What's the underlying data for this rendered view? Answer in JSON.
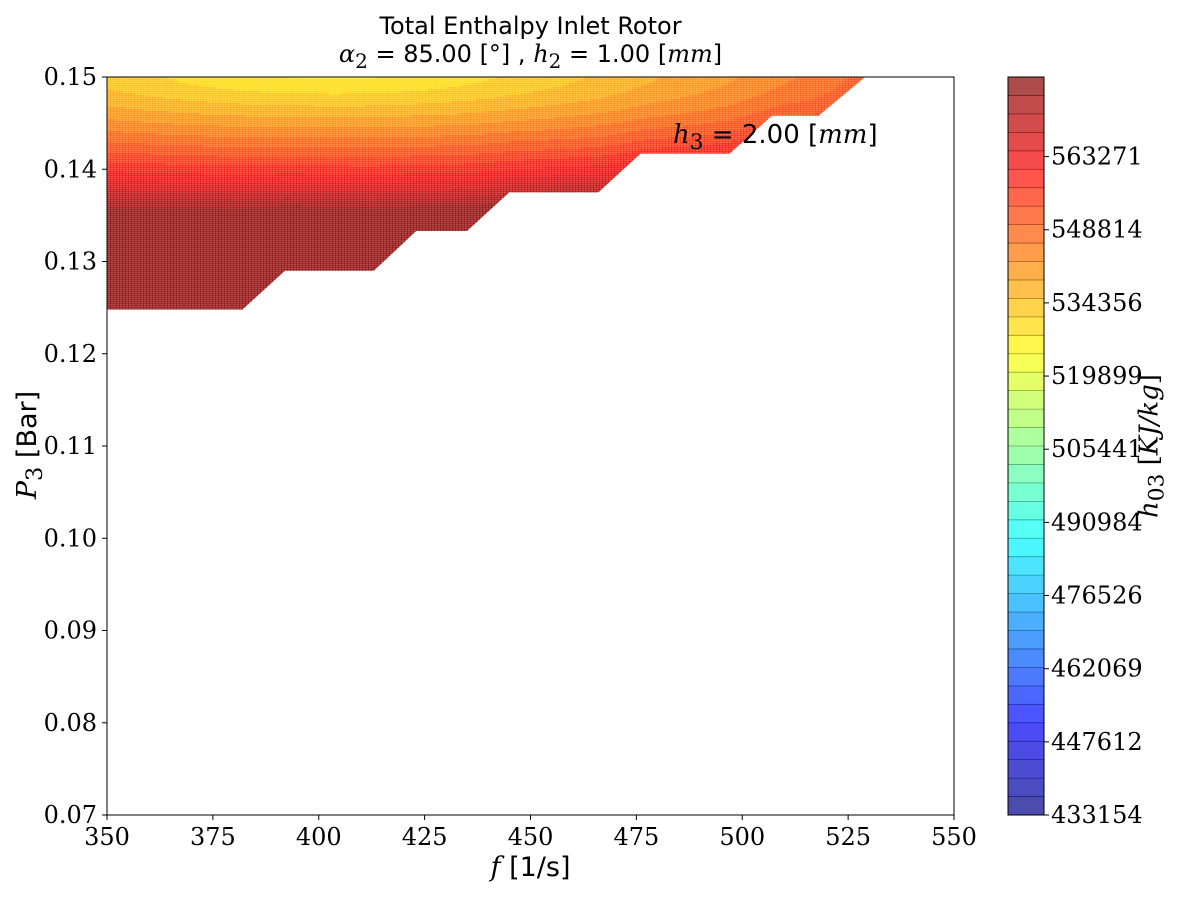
{
  "chart_data": {
    "type": "contourf",
    "title": "Total Enthalpy Inlet Rotor",
    "subtitle": {
      "alpha_symbol": "α",
      "alpha_sub": "2",
      "alpha_value": " = 85.00 [°] , ",
      "h_symbol": "h",
      "h_sub": "2",
      "h_value": " = 1.00 [",
      "h_unit": "mm",
      "h_close": "]"
    },
    "xlabel": {
      "symbol": "f",
      "unit": " [1/s]"
    },
    "ylabel": {
      "symbol": "P",
      "sub": "3",
      "unit": " [Bar]"
    },
    "colorbar_label": {
      "symbol": "h",
      "sub": "03",
      "unit_open": " [",
      "unit": "KJ/kg",
      "unit_close": "]"
    },
    "annotation": {
      "symbol": "h",
      "sub": "3",
      "value": " = 2.00 [",
      "unit": "mm",
      "close": "]"
    },
    "xlim": [
      350,
      550
    ],
    "ylim": [
      0.07,
      0.15
    ],
    "xticks": [
      "350",
      "375",
      "400",
      "425",
      "450",
      "475",
      "500",
      "525",
      "550"
    ],
    "yticks": [
      "0.07",
      "0.08",
      "0.09",
      "0.10",
      "0.11",
      "0.12",
      "0.13",
      "0.14",
      "0.15"
    ],
    "colorbar_range": [
      433154,
      579000
    ],
    "colorbar_ticks": [
      "433154",
      "447612",
      "462069",
      "476526",
      "490984",
      "505441",
      "519899",
      "534356",
      "548814",
      "563271"
    ],
    "colormap": "jet",
    "alpha": 0.7,
    "valid_region_boundary": [
      [
        350,
        0.1248
      ],
      [
        382,
        0.1248
      ],
      [
        392,
        0.129
      ],
      [
        413,
        0.129
      ],
      [
        423,
        0.1333
      ],
      [
        435,
        0.1333
      ],
      [
        445,
        0.1375
      ],
      [
        466,
        0.1375
      ],
      [
        476,
        0.1417
      ],
      [
        497,
        0.1417
      ],
      [
        507,
        0.1458
      ],
      [
        518,
        0.1458
      ],
      [
        529,
        0.15
      ]
    ],
    "field_peak": {
      "f": 403,
      "P3": 0.1508,
      "h03": 526000
    },
    "field_at_boundary": [
      {
        "f": 350,
        "P3": 0.1248,
        "h03": 566000
      },
      {
        "f": 382,
        "P3": 0.1248,
        "h03": 577000
      },
      {
        "f": 413,
        "P3": 0.129,
        "h03": 572000
      },
      {
        "f": 466,
        "P3": 0.1375,
        "h03": 565000
      },
      {
        "f": 518,
        "P3": 0.1458,
        "h03": 566000
      }
    ]
  }
}
